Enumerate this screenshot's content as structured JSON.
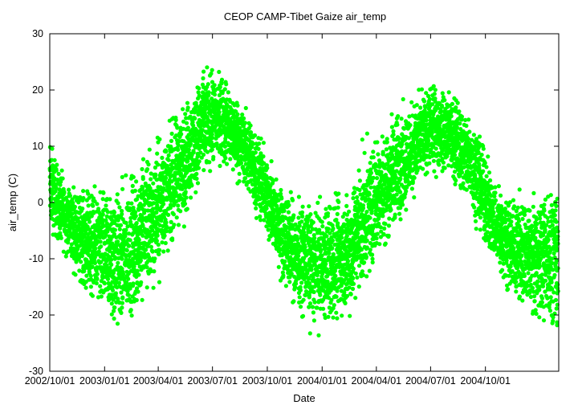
{
  "chart_data": {
    "type": "scatter",
    "title": "CEOP CAMP-Tibet Gaize  air_temp",
    "xlabel": "Date",
    "ylabel": "air_temp (C)",
    "xlim": [
      "2002-10-01",
      "2005-02-01"
    ],
    "ylim": [
      -30,
      30
    ],
    "x_ticks": [
      "2002/10/01",
      "2003/01/01",
      "2003/04/01",
      "2003/07/01",
      "2003/10/01",
      "2004/01/01",
      "2004/04/01",
      "2004/07/01",
      "2004/10/01"
    ],
    "y_ticks": [
      -30,
      -20,
      -10,
      0,
      10,
      20,
      30
    ],
    "grid": false,
    "legend": "none",
    "marker_color": "#00ff00",
    "series": [
      {
        "x": [
          "2002-10-01",
          "2002-10-16",
          "2002-11-01",
          "2002-11-16",
          "2002-12-01",
          "2002-12-16",
          "2003-01-01",
          "2003-01-16",
          "2003-02-01",
          "2003-02-16",
          "2003-03-01",
          "2003-03-16",
          "2003-04-01",
          "2003-04-16",
          "2003-05-01",
          "2003-05-16",
          "2003-06-01",
          "2003-06-16",
          "2003-07-01",
          "2003-07-16",
          "2003-08-01",
          "2003-08-16",
          "2003-09-01",
          "2003-09-16",
          "2003-10-01",
          "2003-10-16",
          "2003-11-01",
          "2003-11-16",
          "2003-12-01",
          "2003-12-16",
          "2004-01-01",
          "2004-01-16",
          "2004-02-01",
          "2004-02-16",
          "2004-03-01",
          "2004-03-16",
          "2004-04-01",
          "2004-04-16",
          "2004-05-01",
          "2004-05-16",
          "2004-06-01",
          "2004-06-16",
          "2004-07-01",
          "2004-07-16",
          "2004-08-01",
          "2004-08-16",
          "2004-09-01",
          "2004-09-16",
          "2004-10-01",
          "2004-10-16",
          "2004-11-01",
          "2004-11-16",
          "2004-12-01",
          "2004-12-16",
          "2005-01-01",
          "2005-01-16",
          "2005-01-31"
        ],
        "min": [
          -7,
          -9,
          -11,
          -15,
          -18,
          -20,
          -24,
          -26,
          -26,
          -24,
          -22,
          -20,
          -16,
          -12,
          -8,
          -5,
          -1,
          3,
          4,
          5,
          4,
          2,
          -1,
          -5,
          -8,
          -13,
          -17,
          -20,
          -22,
          -24,
          -24,
          -25,
          -24,
          -22,
          -20,
          -17,
          -12,
          -10,
          -7,
          -4,
          -1,
          2,
          4,
          4,
          3,
          1,
          -2,
          -5,
          -9,
          -13,
          -16,
          -19,
          -21,
          -22,
          -23,
          -24,
          -26
        ],
        "max": [
          13,
          8,
          5,
          4,
          4,
          4,
          5,
          5,
          6,
          8,
          11,
          13,
          14,
          16,
          18,
          20,
          23,
          25,
          25,
          25,
          22,
          20,
          17,
          14,
          10,
          6,
          4,
          2,
          2,
          2,
          2,
          3,
          4,
          5,
          10,
          12,
          14,
          16,
          18,
          19,
          20,
          21,
          22,
          22,
          21,
          20,
          18,
          16,
          10,
          6,
          4,
          3,
          3,
          3,
          4,
          5,
          6
        ]
      }
    ]
  }
}
